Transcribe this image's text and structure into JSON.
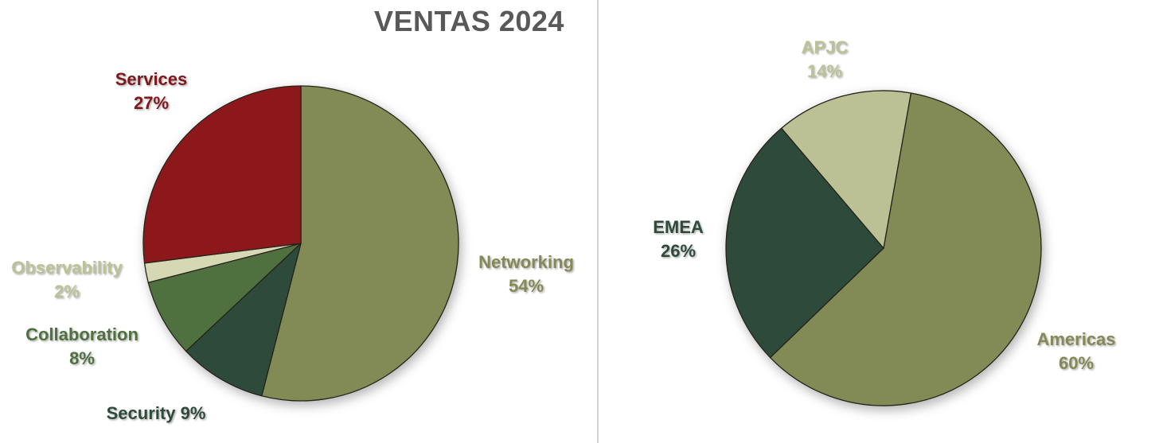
{
  "chart_data": [
    {
      "type": "pie",
      "title": "VENTAS 2024",
      "title_color": "#595959",
      "start_angle": 0,
      "legend": "none",
      "data_labels": "outside, category name + percentage",
      "categories": [
        "Networking",
        "Security",
        "Collaboration",
        "Observability",
        "Services"
      ],
      "values": [
        54,
        9,
        8,
        2,
        27
      ],
      "slices": [
        {
          "name": "Networking",
          "pct": "54%",
          "value": 54,
          "color": "#828A55",
          "label_color": "#858956"
        },
        {
          "name": "Security",
          "pct": "9%",
          "value": 9,
          "color": "#2E4A3A",
          "label_color": "#2E4A3A"
        },
        {
          "name": "Collaboration",
          "pct": "8%",
          "value": 8,
          "color": "#4F7140",
          "label_color": "#4F7140"
        },
        {
          "name": "Observability",
          "pct": "2%",
          "value": 2,
          "color": "#D6D8B4",
          "label_color": "#BCC295"
        },
        {
          "name": "Services",
          "pct": "27%",
          "value": 27,
          "color": "#8C181C",
          "label_color": "#7D191D"
        }
      ],
      "stroke_color": "#26231A"
    },
    {
      "type": "pie",
      "title": "",
      "start_angle": 10,
      "legend": "none",
      "data_labels": "outside, category name + percentage",
      "categories": [
        "Americas",
        "EMEA",
        "APJC"
      ],
      "values": [
        60,
        26,
        14
      ],
      "slices": [
        {
          "name": "Americas",
          "pct": "60%",
          "value": 60,
          "color": "#828A55",
          "label_color": "#858956"
        },
        {
          "name": "EMEA",
          "pct": "26%",
          "value": 26,
          "color": "#2E4A3A",
          "label_color": "#2E4A3A"
        },
        {
          "name": "APJC",
          "pct": "14%",
          "value": 14,
          "color": "#BBC194",
          "label_color": "#BCC295"
        }
      ],
      "stroke_color": "#26231A"
    }
  ]
}
